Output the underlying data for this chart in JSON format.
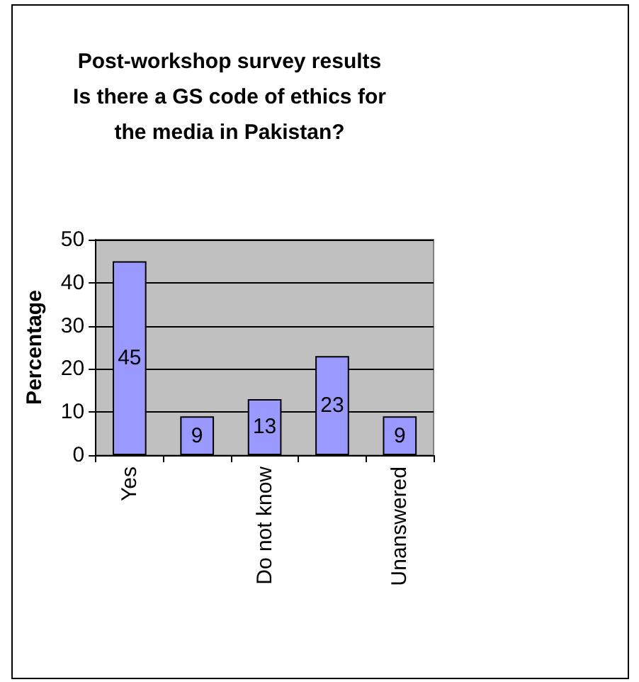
{
  "chart_data": {
    "type": "bar",
    "title": "Post-workshop survey results\nIs there a GS code of ethics for\nthe media in Pakistan?",
    "ylabel": "Percentage",
    "categories": [
      "Yes",
      null,
      "Do not know",
      null,
      "Unanswered"
    ],
    "values": [
      45,
      9,
      13,
      23,
      9
    ],
    "color": "#9999ff",
    "data_labels": true,
    "ylim": [
      0,
      50
    ],
    "yticks": [
      0,
      10,
      20,
      30,
      40,
      50
    ],
    "grid": "y"
  }
}
